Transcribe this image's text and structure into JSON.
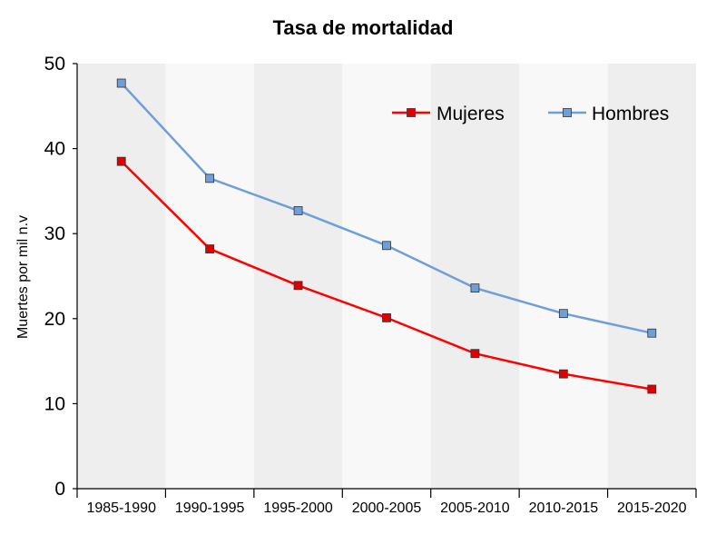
{
  "chart_data": {
    "type": "line",
    "title": "Tasa de mortalidad",
    "xlabel": "",
    "ylabel": "Muertes por mil n.v",
    "categories": [
      "1985-1990",
      "1990-1995",
      "1995-2000",
      "2000-2005",
      "2005-2010",
      "2010-2015",
      "2015-2020"
    ],
    "ylim": [
      0,
      50
    ],
    "yticks": [
      0,
      10,
      20,
      30,
      40,
      50
    ],
    "grid": false,
    "alternating_bands": true,
    "legend_position": "top-right",
    "series": [
      {
        "name": "Mujeres",
        "color": "#ff0000",
        "marker_color": "#e00000",
        "values": [
          38.5,
          28.2,
          23.9,
          20.1,
          15.9,
          13.5,
          11.7
        ]
      },
      {
        "name": "Hombres",
        "color": "#6f9fd8",
        "marker_color": "#6f9fd8",
        "values": [
          47.7,
          36.5,
          32.7,
          28.6,
          23.6,
          20.6,
          18.3
        ]
      }
    ],
    "band_colors": [
      "#eeeeee",
      "#f8f8f8"
    ]
  }
}
